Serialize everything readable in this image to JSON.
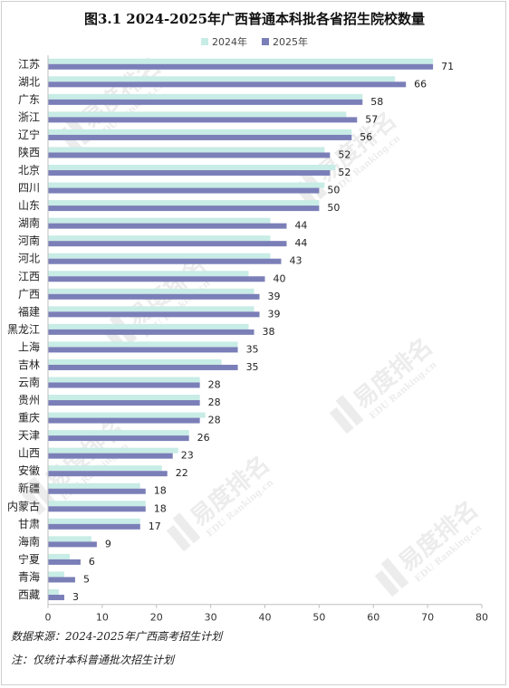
{
  "chart_data": {
    "type": "bar",
    "orientation": "horizontal",
    "title": "图3.1  2024-2025年广西普通本科批各省招生院校数量",
    "categories": [
      "江苏",
      "湖北",
      "广东",
      "浙江",
      "辽宁",
      "陕西",
      "北京",
      "四川",
      "山东",
      "湖南",
      "河南",
      "河北",
      "江西",
      "广西",
      "福建",
      "黑龙江",
      "上海",
      "吉林",
      "云南",
      "贵州",
      "重庆",
      "天津",
      "山西",
      "安徽",
      "新疆",
      "内蒙古",
      "甘肃",
      "海南",
      "宁夏",
      "青海",
      "西藏"
    ],
    "series": [
      {
        "name": "2024年",
        "color": "#c8ece6",
        "values": [
          71,
          64,
          58,
          55,
          56,
          51,
          53,
          51,
          50,
          41,
          41,
          41,
          37,
          38,
          38,
          37,
          35,
          32,
          28,
          28,
          29,
          26,
          24,
          21,
          17,
          18,
          17,
          8,
          4,
          3,
          2
        ]
      },
      {
        "name": "2025年",
        "color": "#7b7fb8",
        "values": [
          71,
          66,
          58,
          57,
          56,
          52,
          52,
          50,
          50,
          44,
          44,
          43,
          40,
          39,
          39,
          38,
          35,
          35,
          28,
          28,
          28,
          26,
          23,
          22,
          18,
          18,
          17,
          9,
          6,
          5,
          3
        ]
      }
    ],
    "data_labels": "2025年",
    "xlim": [
      0,
      80
    ],
    "xticks": [
      0,
      10,
      20,
      30,
      40,
      50,
      60,
      70,
      80
    ],
    "grid": false,
    "legend_position": "top-center"
  },
  "notes": {
    "source": "数据来源：2024-2025年广西高考招生计划",
    "note": "注：仅统计本科普通批次招生计划"
  },
  "watermark": {
    "brand": "易度排名",
    "sub": "EDU Ranking.cn"
  }
}
